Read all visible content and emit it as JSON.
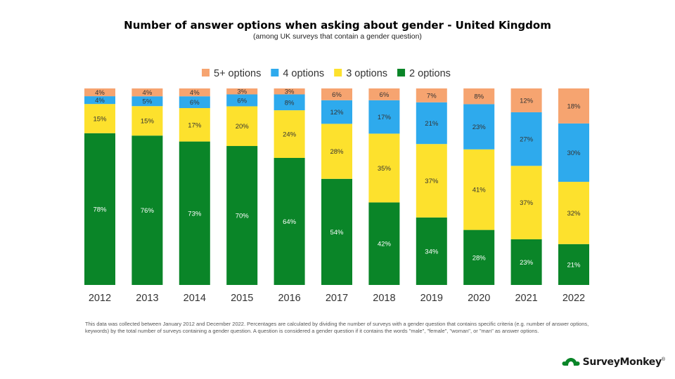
{
  "title": "Number of answer options when asking about gender - United Kingdom",
  "subtitle": "(among UK surveys that contain a gender question)",
  "footnote": "This data was collected between January 2012 and December 2022. Percentages are calculated by dividing the number of surveys with a gender question that contains specific criteria (e.g. number of answer options, keywords) by the total number of surveys containing a gender question. A question is considered a gender question if it contains the words \"male\", \"female\", \"woman\", or \"man\" as answer options.",
  "logo": {
    "text": "SurveyMonkey",
    "mark": "®"
  },
  "chart_data": {
    "type": "bar",
    "stacked": true,
    "normalized": true,
    "categories": [
      "2012",
      "2013",
      "2014",
      "2015",
      "2016",
      "2017",
      "2018",
      "2019",
      "2020",
      "2021",
      "2022"
    ],
    "series": [
      {
        "name": "2 options",
        "color": "#0a8528",
        "label_color": "#ffffff",
        "values": [
          78,
          76,
          73,
          70,
          64,
          54,
          42,
          34,
          28,
          23,
          21
        ]
      },
      {
        "name": "3 options",
        "color": "#fde12d",
        "label_color": "#333333",
        "values": [
          15,
          15,
          17,
          20,
          24,
          28,
          35,
          37,
          41,
          37,
          32
        ]
      },
      {
        "name": "4 options",
        "color": "#2eaaed",
        "label_color": "#333333",
        "values": [
          4,
          5,
          6,
          6,
          8,
          12,
          17,
          21,
          23,
          27,
          30
        ]
      },
      {
        "name": "5+ options",
        "color": "#f6a470",
        "label_color": "#333333",
        "values": [
          4,
          4,
          4,
          3,
          3,
          6,
          6,
          7,
          8,
          12,
          18
        ]
      }
    ],
    "legend_order": [
      "5+ options",
      "4 options",
      "3 options",
      "2 options"
    ],
    "legend": "top",
    "value_suffix": "%",
    "grid": false
  }
}
